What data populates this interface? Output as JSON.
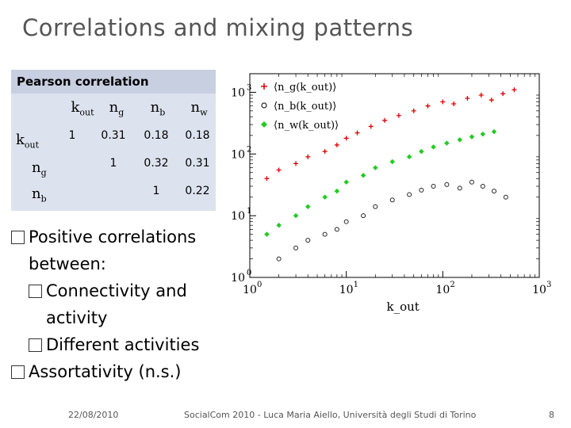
{
  "slide": {
    "title": "Correlations and mixing patterns",
    "table": {
      "heading": "Pearson correlation",
      "columns": [
        {
          "base": "k",
          "sub": "out"
        },
        {
          "base": "n",
          "sub": "g"
        },
        {
          "base": "n",
          "sub": "b"
        },
        {
          "base": "n",
          "sub": "w"
        }
      ],
      "rows": [
        {
          "base": "k",
          "sub": "out",
          "cells": [
            "1",
            "0.31",
            "0.18",
            "0.18"
          ]
        },
        {
          "base": "n",
          "sub": "g",
          "cells": [
            "",
            "1",
            "0.32",
            "0.31"
          ]
        },
        {
          "base": "n",
          "sub": "b",
          "cells": [
            "",
            "",
            "1",
            "0.22"
          ]
        }
      ]
    },
    "bullets": [
      {
        "level": 1,
        "lines": [
          "Positive correlations",
          "between:"
        ]
      },
      {
        "level": 2,
        "lines": [
          "Connectivity and",
          "activity"
        ]
      },
      {
        "level": 2,
        "lines": [
          "Different activities"
        ]
      },
      {
        "level": 1,
        "lines": [
          "Assortativity (n.s.)"
        ]
      }
    ],
    "footer": {
      "date": "22/08/2010",
      "center": "SocialCom 2010 - Luca Maria Aiello, Università degli Studi di Torino",
      "page": "8"
    }
  },
  "chart_data": {
    "type": "scatter",
    "title": "",
    "xlabel": "k_out",
    "ylabel": "",
    "xscale": "log",
    "yscale": "log",
    "xlim": [
      1,
      1000
    ],
    "ylim": [
      1,
      2000
    ],
    "xticks": [
      "10^0",
      "10^1",
      "10^2",
      "10^3"
    ],
    "yticks": [
      "10^0",
      "10^1",
      "10^2",
      "10^3"
    ],
    "legend_position": "top-left",
    "series": [
      {
        "name": "⟨n_g(k_out)⟩",
        "color": "#dd0000",
        "marker": "plus",
        "x": [
          1.5,
          2,
          3,
          4,
          6,
          8,
          10,
          13,
          18,
          25,
          35,
          50,
          70,
          100,
          130,
          180,
          250,
          320,
          420,
          550
        ],
        "y": [
          40,
          55,
          70,
          90,
          110,
          140,
          180,
          220,
          280,
          350,
          420,
          500,
          600,
          700,
          650,
          800,
          900,
          750,
          950,
          1100
        ]
      },
      {
        "name": "⟨n_b(k_out)⟩",
        "color": "#222222",
        "marker": "circle",
        "x": [
          2,
          3,
          4,
          6,
          8,
          10,
          15,
          20,
          30,
          45,
          60,
          80,
          110,
          150,
          200,
          260,
          340,
          450
        ],
        "y": [
          2,
          3,
          4,
          5,
          6,
          8,
          10,
          14,
          18,
          22,
          26,
          30,
          32,
          28,
          35,
          30,
          25,
          20
        ]
      },
      {
        "name": "⟨n_w(k_out)⟩",
        "color": "#22cc22",
        "marker": "diamond",
        "x": [
          1.5,
          2,
          3,
          4,
          6,
          8,
          10,
          15,
          20,
          30,
          45,
          60,
          80,
          110,
          150,
          200,
          260,
          340
        ],
        "y": [
          5,
          7,
          10,
          14,
          20,
          25,
          35,
          45,
          60,
          75,
          90,
          110,
          130,
          150,
          170,
          190,
          210,
          230
        ]
      }
    ]
  }
}
